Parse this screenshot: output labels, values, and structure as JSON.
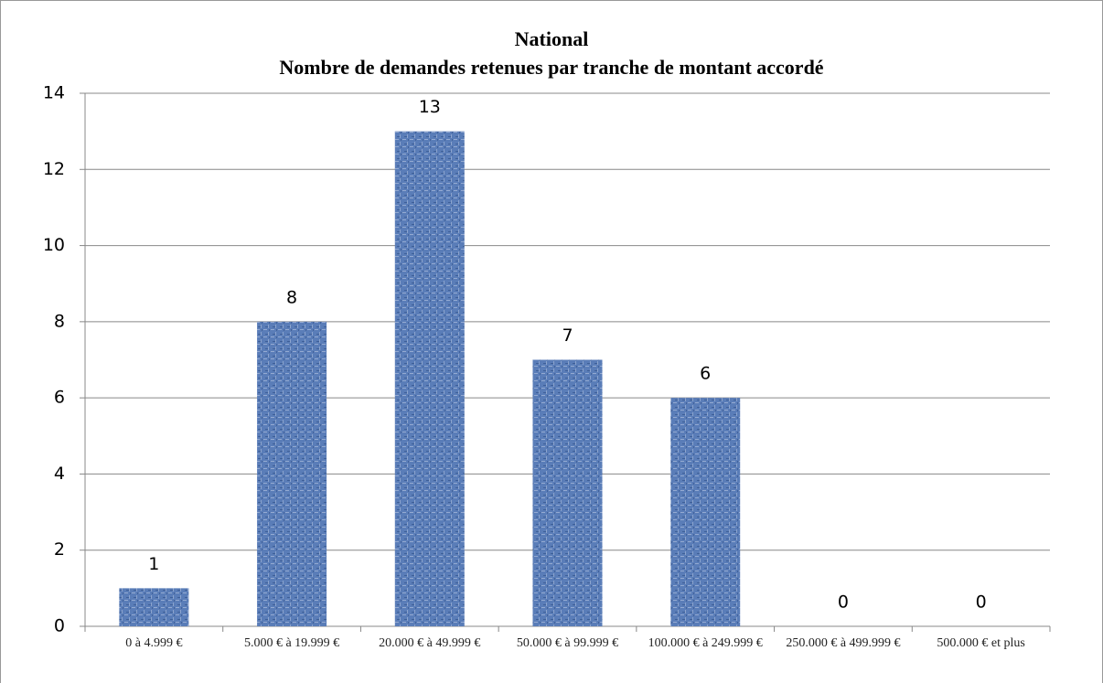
{
  "chart_data": {
    "type": "bar",
    "title": "National",
    "subtitle": "Nombre de demandes retenues par tranche de montant accordé",
    "categories": [
      "0 à 4.999 €",
      "5.000 € à 19.999 €",
      "20.000 € à 49.999 €",
      "50.000 € à 99.999 €",
      "100.000 € à 249.999 €",
      "250.000 € à 499.999 €",
      "500.000 € et plus"
    ],
    "values": [
      1,
      8,
      13,
      7,
      6,
      0,
      0
    ],
    "color": "#5a7db8",
    "ylim": [
      0,
      14
    ],
    "yticks": [
      0,
      2,
      4,
      6,
      8,
      10,
      12,
      14
    ],
    "grid": true
  }
}
